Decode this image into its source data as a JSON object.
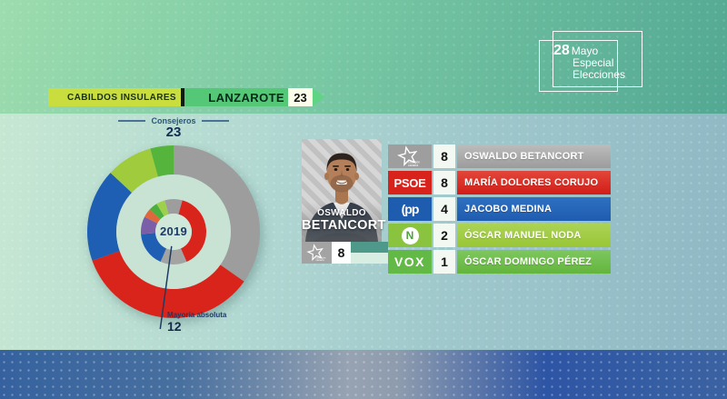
{
  "header": {
    "category": "CABILDOS INSULARES",
    "island": "LANZAROTE",
    "island_seats": 23
  },
  "brand": {
    "day": "28",
    "month": "Mayo",
    "line2": "Especial",
    "line3": "Elecciones"
  },
  "chart_data": {
    "type": "donut",
    "title": "Consejeros",
    "total_seats": 23,
    "center_year": "2019",
    "majority_label": "Mayoría absoluta",
    "majority_seats": 12,
    "outer_ring": {
      "label": "current seats",
      "segments": [
        {
          "party": "Coalición Canaria",
          "seats": 8,
          "color": "#9d9d9d"
        },
        {
          "party": "PSOE",
          "seats": 8,
          "color": "#d9241c"
        },
        {
          "party": "PP",
          "seats": 4,
          "color": "#1e5fb3"
        },
        {
          "party": "Nueva Canarias",
          "seats": 2,
          "color": "#a0cb3c"
        },
        {
          "party": "VOX",
          "seats": 1,
          "color": "#54b43c"
        }
      ]
    },
    "inner_ring": {
      "label": "2019 seats",
      "segments": [
        {
          "seats": 1,
          "color": "#9d9d9d"
        },
        {
          "seats": 9,
          "color": "#d9241c"
        },
        {
          "seats": 3,
          "color": "#a3a3a3"
        },
        {
          "seats": 4,
          "color": "#1e5fb3"
        },
        {
          "seats": 2,
          "color": "#7a5fa8"
        },
        {
          "seats": 1,
          "color": "#e0663c"
        },
        {
          "seats": 1,
          "color": "#4aaf3f"
        },
        {
          "seats": 1,
          "color": "#9dd04b"
        },
        {
          "seats": 1,
          "color": "#9d9d9d"
        }
      ]
    }
  },
  "candidate_card": {
    "first_name": "OSWALDO",
    "last_name": "BETANCORT",
    "seats": 8,
    "party": "Coalición Canaria"
  },
  "results_table": {
    "rows": [
      {
        "party": "Coalición Canaria",
        "logo_text_top": "coalición",
        "logo_text_bottom": "canaria",
        "seats": 8,
        "candidate": "OSWALDO BETANCORT",
        "box_color": "#9e9e9e",
        "bar_top": "#bcbcbc",
        "bar_bottom": "#9c9c9c"
      },
      {
        "party": "PSOE",
        "logo_text": "PSOE",
        "seats": 8,
        "candidate": "MARÍA DOLORES CORUJO",
        "box_color": "#d7231c",
        "bar_top": "#e2463a",
        "bar_bottom": "#d21d17"
      },
      {
        "party": "PP",
        "logo_text": "(pp",
        "seats": 4,
        "candidate": "JACOBO MEDINA",
        "box_color": "#1d5cae",
        "bar_top": "#2f70c1",
        "bar_bottom": "#1e5cb0"
      },
      {
        "party": "Nueva Canarias",
        "logo_text": "N",
        "seats": 2,
        "candidate": "ÓSCAR MANUEL NODA",
        "box_color": "#8ac33e",
        "bar_top": "#abd356",
        "bar_bottom": "#99c636"
      },
      {
        "party": "VOX",
        "logo_text": "VOX",
        "seats": 1,
        "candidate": "ÓSCAR DOMINGO PÉREZ",
        "box_color": "#62b945",
        "bar_top": "#7ec75f",
        "bar_bottom": "#63b53d"
      }
    ]
  }
}
